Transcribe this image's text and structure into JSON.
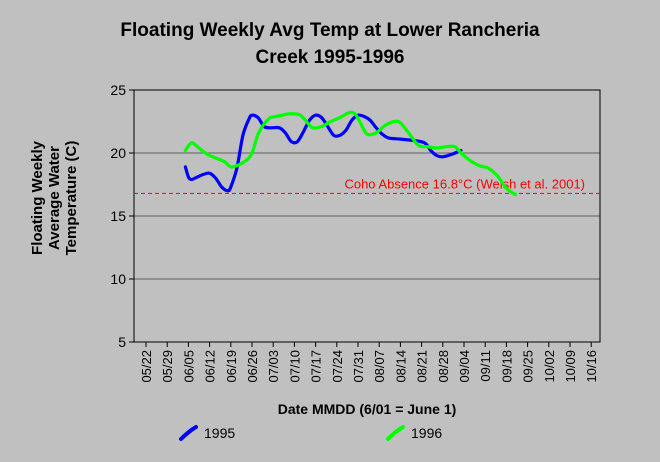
{
  "chart_data": {
    "type": "line",
    "title_line1": "Floating Weekly Avg Temp at Lower Rancheria",
    "title_line2": "Creek 1995-1996",
    "ylabel_line1": "Floating Weekly",
    "ylabel_line2": "Average Water",
    "ylabel_line3": "Temperature (C)",
    "xlabel": "Date MMDD (6/01 = June 1)",
    "ylim": [
      5,
      25
    ],
    "yticks": [
      5,
      10,
      15,
      20,
      25
    ],
    "x_start": "05/22",
    "xticks": [
      "05/22",
      "05/29",
      "06/05",
      "06/12",
      "06/19",
      "06/26",
      "07/03",
      "07/10",
      "07/17",
      "07/24",
      "07/31",
      "08/07",
      "08/14",
      "08/21",
      "08/28",
      "09/04",
      "09/11",
      "09/18",
      "09/25",
      "10/02",
      "10/09",
      "10/16"
    ],
    "grid": "horizontal",
    "reference_line": {
      "value": 16.8,
      "label": "Coho Absence 16.8°C (Welsh et al. 2001)",
      "color": "#ff0000"
    },
    "legend_placement": "bottom",
    "series": [
      {
        "name": "1995",
        "color": "#0000ff",
        "points": [
          [
            "06/04",
            18.9
          ],
          [
            "06/05",
            18.1
          ],
          [
            "06/06",
            17.9
          ],
          [
            "06/08",
            18.1
          ],
          [
            "06/10",
            18.3
          ],
          [
            "06/12",
            18.4
          ],
          [
            "06/14",
            18.0
          ],
          [
            "06/16",
            17.3
          ],
          [
            "06/18",
            17.0
          ],
          [
            "06/19",
            17.3
          ],
          [
            "06/21",
            18.8
          ],
          [
            "06/23",
            21.4
          ],
          [
            "06/25",
            22.7
          ],
          [
            "06/26",
            23.0
          ],
          [
            "06/28",
            22.8
          ],
          [
            "06/30",
            22.1
          ],
          [
            "07/02",
            22.0
          ],
          [
            "07/05",
            22.0
          ],
          [
            "07/07",
            21.6
          ],
          [
            "07/09",
            20.9
          ],
          [
            "07/11",
            20.9
          ],
          [
            "07/13",
            21.7
          ],
          [
            "07/15",
            22.6
          ],
          [
            "07/17",
            23.0
          ],
          [
            "07/19",
            22.8
          ],
          [
            "07/21",
            22.1
          ],
          [
            "07/23",
            21.4
          ],
          [
            "07/25",
            21.4
          ],
          [
            "07/27",
            21.8
          ],
          [
            "07/29",
            22.6
          ],
          [
            "07/31",
            23.0
          ],
          [
            "08/02",
            22.9
          ],
          [
            "08/04",
            22.6
          ],
          [
            "08/06",
            22.0
          ],
          [
            "08/08",
            21.5
          ],
          [
            "08/10",
            21.2
          ],
          [
            "08/14",
            21.1
          ],
          [
            "08/18",
            21.0
          ],
          [
            "08/22",
            20.8
          ],
          [
            "08/24",
            20.2
          ],
          [
            "08/26",
            19.8
          ],
          [
            "08/28",
            19.7
          ],
          [
            "08/31",
            19.9
          ],
          [
            "09/03",
            20.2
          ]
        ]
      },
      {
        "name": "1996",
        "color": "#00ff00",
        "points": [
          [
            "06/04",
            20.2
          ],
          [
            "06/06",
            20.8
          ],
          [
            "06/08",
            20.5
          ],
          [
            "06/10",
            20.1
          ],
          [
            "06/12",
            19.8
          ],
          [
            "06/14",
            19.6
          ],
          [
            "06/17",
            19.3
          ],
          [
            "06/19",
            18.9
          ],
          [
            "06/21",
            19.0
          ],
          [
            "06/24",
            19.4
          ],
          [
            "06/26",
            20.0
          ],
          [
            "06/28",
            21.5
          ],
          [
            "06/30",
            22.3
          ],
          [
            "07/02",
            22.8
          ],
          [
            "07/04",
            22.9
          ],
          [
            "07/06",
            23.0
          ],
          [
            "07/08",
            23.1
          ],
          [
            "07/10",
            23.1
          ],
          [
            "07/12",
            23.0
          ],
          [
            "07/14",
            22.5
          ],
          [
            "07/16",
            22.0
          ],
          [
            "07/19",
            22.1
          ],
          [
            "07/22",
            22.5
          ],
          [
            "07/25",
            22.8
          ],
          [
            "07/28",
            23.2
          ],
          [
            "07/30",
            23.1
          ],
          [
            "08/01",
            22.3
          ],
          [
            "08/03",
            21.5
          ],
          [
            "08/06",
            21.6
          ],
          [
            "08/09",
            22.2
          ],
          [
            "08/12",
            22.5
          ],
          [
            "08/14",
            22.4
          ],
          [
            "08/17",
            21.5
          ],
          [
            "08/20",
            20.6
          ],
          [
            "08/23",
            20.5
          ],
          [
            "08/26",
            20.4
          ],
          [
            "08/29",
            20.5
          ],
          [
            "09/01",
            20.5
          ],
          [
            "09/03",
            20.0
          ],
          [
            "09/06",
            19.4
          ],
          [
            "09/09",
            19.0
          ],
          [
            "09/12",
            18.8
          ],
          [
            "09/15",
            18.2
          ],
          [
            "09/18",
            17.2
          ],
          [
            "09/21",
            16.7
          ]
        ]
      }
    ]
  }
}
